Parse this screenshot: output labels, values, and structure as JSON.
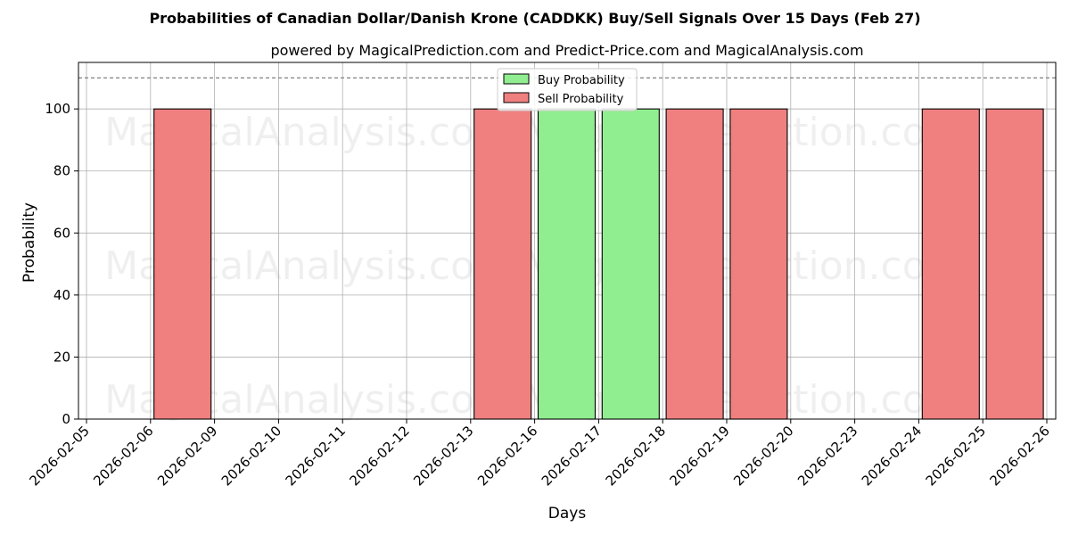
{
  "chart_data": {
    "type": "bar",
    "title": "Probabilities of Canadian Dollar/Danish Krone (CADDKK) Buy/Sell Signals Over 15 Days (Feb 27)",
    "subtitle": "powered by MagicalPrediction.com and Predict-Price.com and MagicalAnalysis.com",
    "xlabel": "Days",
    "ylabel": "Probability",
    "categories": [
      "2026-02-05",
      "2026-02-06",
      "2026-02-09",
      "2026-02-10",
      "2026-02-11",
      "2026-02-12",
      "2026-02-13",
      "2026-02-16",
      "2026-02-17",
      "2026-02-18",
      "2026-02-19",
      "2026-02-20",
      "2026-02-23",
      "2026-02-24",
      "2026-02-25",
      "2026-02-26"
    ],
    "ylim": [
      0,
      115
    ],
    "yticks": [
      0,
      20,
      40,
      60,
      80,
      100
    ],
    "reference_line": 110,
    "grid": true,
    "legend_position": "top-center",
    "series": [
      {
        "name": "Buy Probability",
        "color": "#90ee90",
        "bars": [
          {
            "category": "2026-02-16",
            "value": 100
          },
          {
            "category": "2026-02-17",
            "value": 100
          }
        ]
      },
      {
        "name": "Sell Probability",
        "color": "#f08080",
        "bars": [
          {
            "category": "2026-02-06",
            "value": 100
          },
          {
            "category": "2026-02-13",
            "value": 100
          },
          {
            "category": "2026-02-18",
            "value": 100
          },
          {
            "category": "2026-02-19",
            "value": 100
          },
          {
            "category": "2026-02-24",
            "value": 100
          },
          {
            "category": "2026-02-25",
            "value": 100
          }
        ]
      }
    ],
    "watermarks": [
      "MagicalAnalysis.com",
      "MagicalPrediction.com"
    ]
  }
}
